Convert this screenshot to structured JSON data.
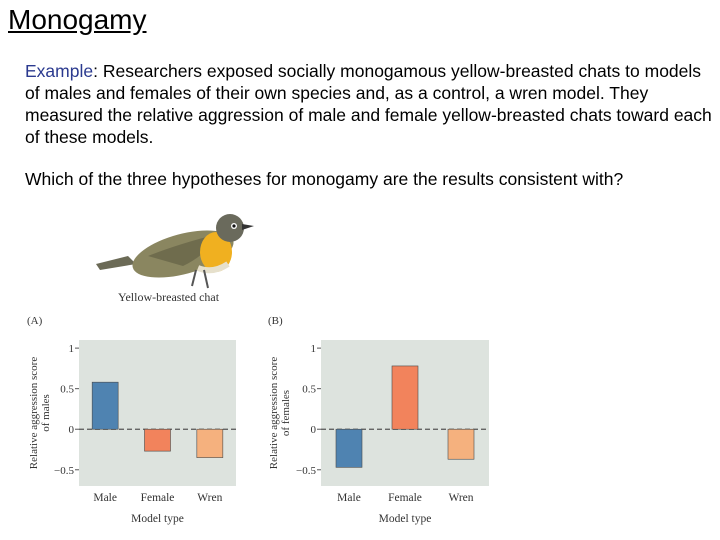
{
  "slide": {
    "title": "Monogamy",
    "example_label": "Example",
    "example_text": ": Researchers exposed socially monogamous yellow-breasted chats to models of males and females of their own species and, as a control, a wren model.  They measured the relative aggression of male and female yellow-breasted chats toward each of these models.",
    "question": "Which of the three hypotheses for monogamy are the results consistent with?",
    "bird_caption": "Yellow-breasted chat"
  },
  "colors": {
    "male": "#4f83b1",
    "female": "#f2835c",
    "wren": "#f5b17e",
    "plot_bg": "#dde3de"
  },
  "chart_data": [
    {
      "type": "bar",
      "panel": "(A)",
      "categories": [
        "Male",
        "Female",
        "Wren"
      ],
      "values": [
        0.58,
        -0.27,
        -0.35
      ],
      "xlabel": "Model type",
      "ylabel": "Relative aggression score of males",
      "ylim": [
        -0.7,
        1.1
      ],
      "yticks": [
        "1",
        "0.5",
        "0",
        "−0.5"
      ],
      "grid": false
    },
    {
      "type": "bar",
      "panel": "(B)",
      "categories": [
        "Male",
        "Female",
        "Wren"
      ],
      "values": [
        -0.47,
        0.78,
        -0.37
      ],
      "xlabel": "Model type",
      "ylabel": "Relative aggression score of females",
      "ylim": [
        -0.7,
        1.1
      ],
      "yticks": [
        "1",
        "0.5",
        "0",
        "−0.5"
      ],
      "grid": false
    }
  ]
}
